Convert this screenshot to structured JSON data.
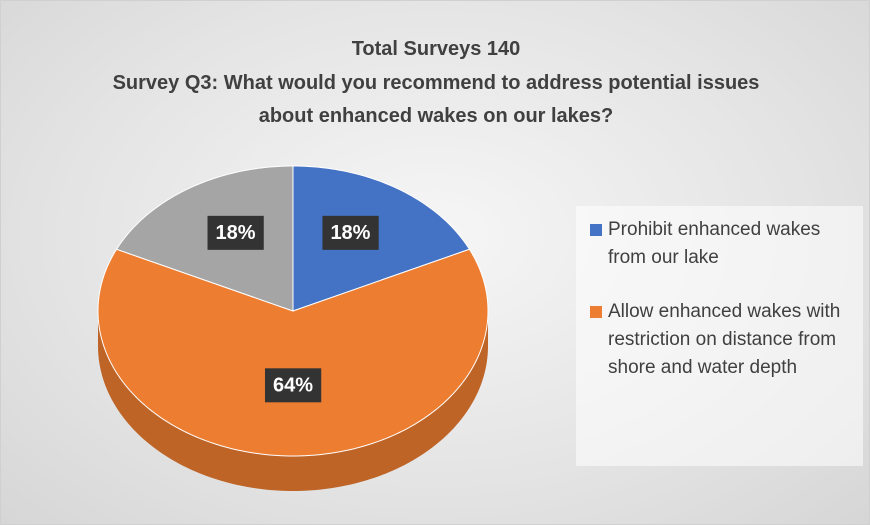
{
  "chart_data": {
    "type": "pie",
    "title": "Total Surveys 140",
    "subtitle": "Survey Q3: What would you recommend to address potential issues about enhanced wakes on our lakes?",
    "categories": [
      "Prohibit enhanced wakes from our lake",
      "Allow enhanced wakes with restriction on distance from shore and water depth",
      null
    ],
    "values": [
      18,
      64,
      18
    ],
    "value_labels": [
      "18%",
      "64%",
      "18%"
    ],
    "colors": [
      "#4472c4",
      "#ed7d31",
      "#a5a5a5"
    ],
    "legend": "right"
  }
}
